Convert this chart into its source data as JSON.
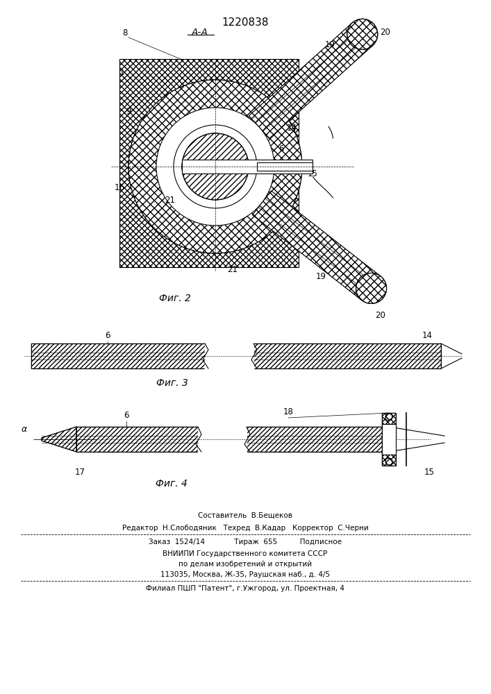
{
  "title": "1220838",
  "fig2_caption": "Фиг. 2",
  "fig3_caption": "Фиг. 3",
  "fig4_caption": "Фиг. 4",
  "bg_color": "#ffffff",
  "line_color": "#000000",
  "footer_line1": "Составитель  В.Бещеков",
  "footer_line2": "Редактор  Н.Слободяник   Техред  В.Кадар   Корректор  С.Черни",
  "footer_line3": "Заказ  1524/14             Тираж  655          Подписное",
  "footer_line4": "ВНИИПИ Государственного комитета СССР",
  "footer_line5": "по делам изобретений и открытий",
  "footer_line6": "113035, Москва, Ж-35, Раушская наб., д. 4/5",
  "footer_line7": "Филиал ПШП \"Патент\", г.Ужгород, ул. Проектная, 4"
}
